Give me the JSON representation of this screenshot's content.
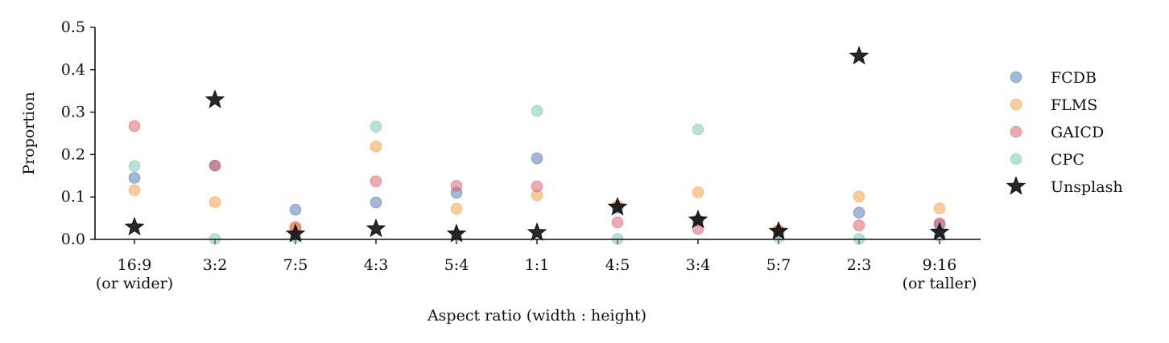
{
  "chart_data": {
    "type": "scatter",
    "xlabel": "Aspect ratio (width : height)",
    "ylabel": "Proportion",
    "ylim": [
      0,
      0.5
    ],
    "yticks": [
      "0.0",
      "0.1",
      "0.2",
      "0.3",
      "0.4",
      "0.5"
    ],
    "categories": [
      [
        "16:9",
        "(or wider)"
      ],
      [
        "3:2"
      ],
      [
        "7:5"
      ],
      [
        "4:3"
      ],
      [
        "5:4"
      ],
      [
        "1:1"
      ],
      [
        "4:5"
      ],
      [
        "3:4"
      ],
      [
        "5:7"
      ],
      [
        "2:3"
      ],
      [
        "9:16",
        "(or taller)"
      ]
    ],
    "legend_position": "right",
    "series": [
      {
        "name": "FCDB",
        "marker": "circle",
        "color": "#4C72B0",
        "values": [
          0.145,
          0.174,
          0.07,
          0.087,
          0.11,
          0.191,
          0.075,
          0.045,
          0.02,
          0.063,
          0.035
        ]
      },
      {
        "name": "FLMS",
        "marker": "circle",
        "color": "#F39B37",
        "values": [
          0.116,
          0.088,
          0.03,
          0.219,
          0.072,
          0.104,
          0.08,
          0.111,
          0.022,
          0.101,
          0.073
        ]
      },
      {
        "name": "GAICD",
        "marker": "circle",
        "color": "#DC5A67",
        "values": [
          0.267,
          0.174,
          0.027,
          0.137,
          0.126,
          0.125,
          0.04,
          0.025,
          0.017,
          0.033,
          0.038
        ]
      },
      {
        "name": "CPC",
        "marker": "circle",
        "color": "#76C1B2",
        "values": [
          0.173,
          0.001,
          0.005,
          0.266,
          0.008,
          0.303,
          0.001,
          0.259,
          0.005,
          0.001,
          0.008
        ]
      },
      {
        "name": "Unsplash",
        "marker": "star",
        "color": "#111111",
        "values": [
          0.029,
          0.329,
          0.013,
          0.025,
          0.013,
          0.016,
          0.076,
          0.046,
          0.019,
          0.432,
          0.017
        ]
      }
    ]
  }
}
